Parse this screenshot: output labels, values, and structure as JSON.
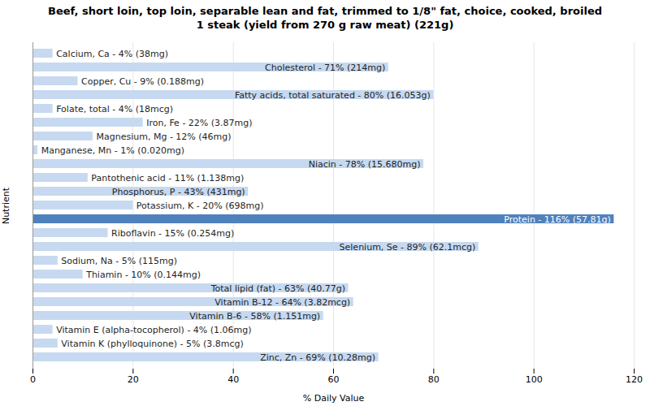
{
  "chart_data": {
    "type": "bar",
    "orientation": "horizontal",
    "title": "Beef, short loin, top loin, separable lean and fat, trimmed to 1/8\" fat, choice, cooked, broiled\n1 steak (yield from 270 g raw meat) (221g)",
    "xlabel": "% Daily Value",
    "ylabel": "Nutrient",
    "categories": [
      "Calcium, Ca - 4% (38mg)",
      "Cholesterol - 71% (214mg)",
      "Copper, Cu - 9% (0.188mg)",
      "Fatty acids, total saturated - 80% (16.053g)",
      "Folate, total - 4% (18mcg)",
      "Iron, Fe - 22% (3.87mg)",
      "Magnesium, Mg - 12% (46mg)",
      "Manganese, Mn - 1% (0.020mg)",
      "Niacin - 78% (15.680mg)",
      "Pantothenic acid - 11% (1.138mg)",
      "Phosphorus, P - 43% (431mg)",
      "Potassium, K - 20% (698mg)",
      "Protein - 116% (57.81g)",
      "Riboflavin - 15% (0.254mg)",
      "Selenium, Se - 89% (62.1mcg)",
      "Sodium, Na - 5% (115mg)",
      "Thiamin - 10% (0.144mg)",
      "Total lipid (fat) - 63% (40.77g)",
      "Vitamin B-12 - 64% (3.82mcg)",
      "Vitamin B-6 - 58% (1.151mg)",
      "Vitamin E (alpha-tocopherol) - 4% (1.06mg)",
      "Vitamin K (phylloquinone) - 5% (3.8mcg)",
      "Zinc, Zn - 69% (10.28mg)"
    ],
    "values": [
      4,
      71,
      9,
      80,
      4,
      22,
      12,
      1,
      78,
      11,
      43,
      20,
      116,
      15,
      89,
      5,
      10,
      63,
      64,
      58,
      4,
      5,
      69
    ],
    "colors": [
      "#c6d9f0",
      "#c6d9f0",
      "#c6d9f0",
      "#c6d9f0",
      "#c6d9f0",
      "#c6d9f0",
      "#c6d9f0",
      "#c6d9f0",
      "#c6d9f0",
      "#c6d9f0",
      "#c6d9f0",
      "#c6d9f0",
      "#4f81bd",
      "#c6d9f0",
      "#c6d9f0",
      "#c6d9f0",
      "#c6d9f0",
      "#c6d9f0",
      "#c6d9f0",
      "#c6d9f0",
      "#c6d9f0",
      "#c6d9f0",
      "#c6d9f0"
    ],
    "xlim": [
      0,
      120
    ],
    "xticks": [
      0,
      20,
      40,
      60,
      80,
      100,
      120
    ],
    "grid": true,
    "tick_labels": "x"
  }
}
